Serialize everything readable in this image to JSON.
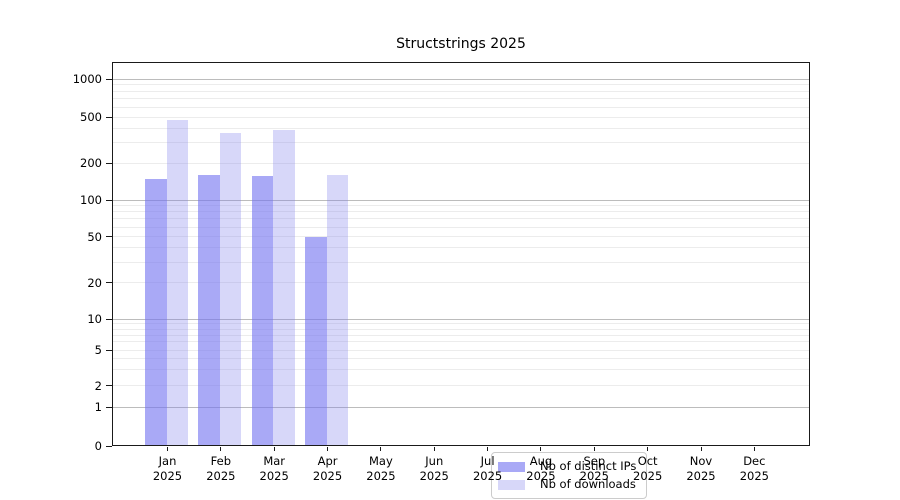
{
  "figure": {
    "title": "Structstrings 2025"
  },
  "legend": {
    "items": [
      {
        "label": "Nb of distinct IPs"
      },
      {
        "label": "Nb of downloads"
      }
    ]
  },
  "chart_data": {
    "type": "bar",
    "title": "Structstrings 2025",
    "x_year": "2025",
    "categories": [
      "Jan",
      "Feb",
      "Mar",
      "Apr",
      "May",
      "Jun",
      "Jul",
      "Aug",
      "Sep",
      "Oct",
      "Nov",
      "Dec"
    ],
    "series": [
      {
        "name": "Nb of distinct IPs",
        "color": "rgba(116,116,241,0.62)",
        "values": [
          149,
          159,
          156,
          50,
          null,
          null,
          null,
          null,
          null,
          null,
          null,
          null
        ]
      },
      {
        "name": "Nb of downloads",
        "color": "rgba(125,125,235,0.31)",
        "values": [
          467,
          365,
          385,
          159,
          null,
          null,
          null,
          null,
          null,
          null,
          null,
          null
        ]
      }
    ],
    "y_axis": {
      "scale": "symlog",
      "ticks": [
        0,
        1,
        2,
        5,
        10,
        20,
        50,
        100,
        200,
        500,
        1000
      ],
      "ylim": [
        0,
        1380
      ]
    },
    "grid": {
      "major_lines": [
        1,
        10,
        100,
        1000
      ],
      "minor_multipliers": [
        2,
        3,
        4,
        5,
        6,
        7,
        8,
        9
      ],
      "minor_decades": [
        1,
        10,
        100
      ],
      "major_color": "#bcbcbc",
      "minor_color": "#ececec"
    },
    "legend_position": "lower center inside plot",
    "xlabel": "",
    "ylabel": ""
  }
}
